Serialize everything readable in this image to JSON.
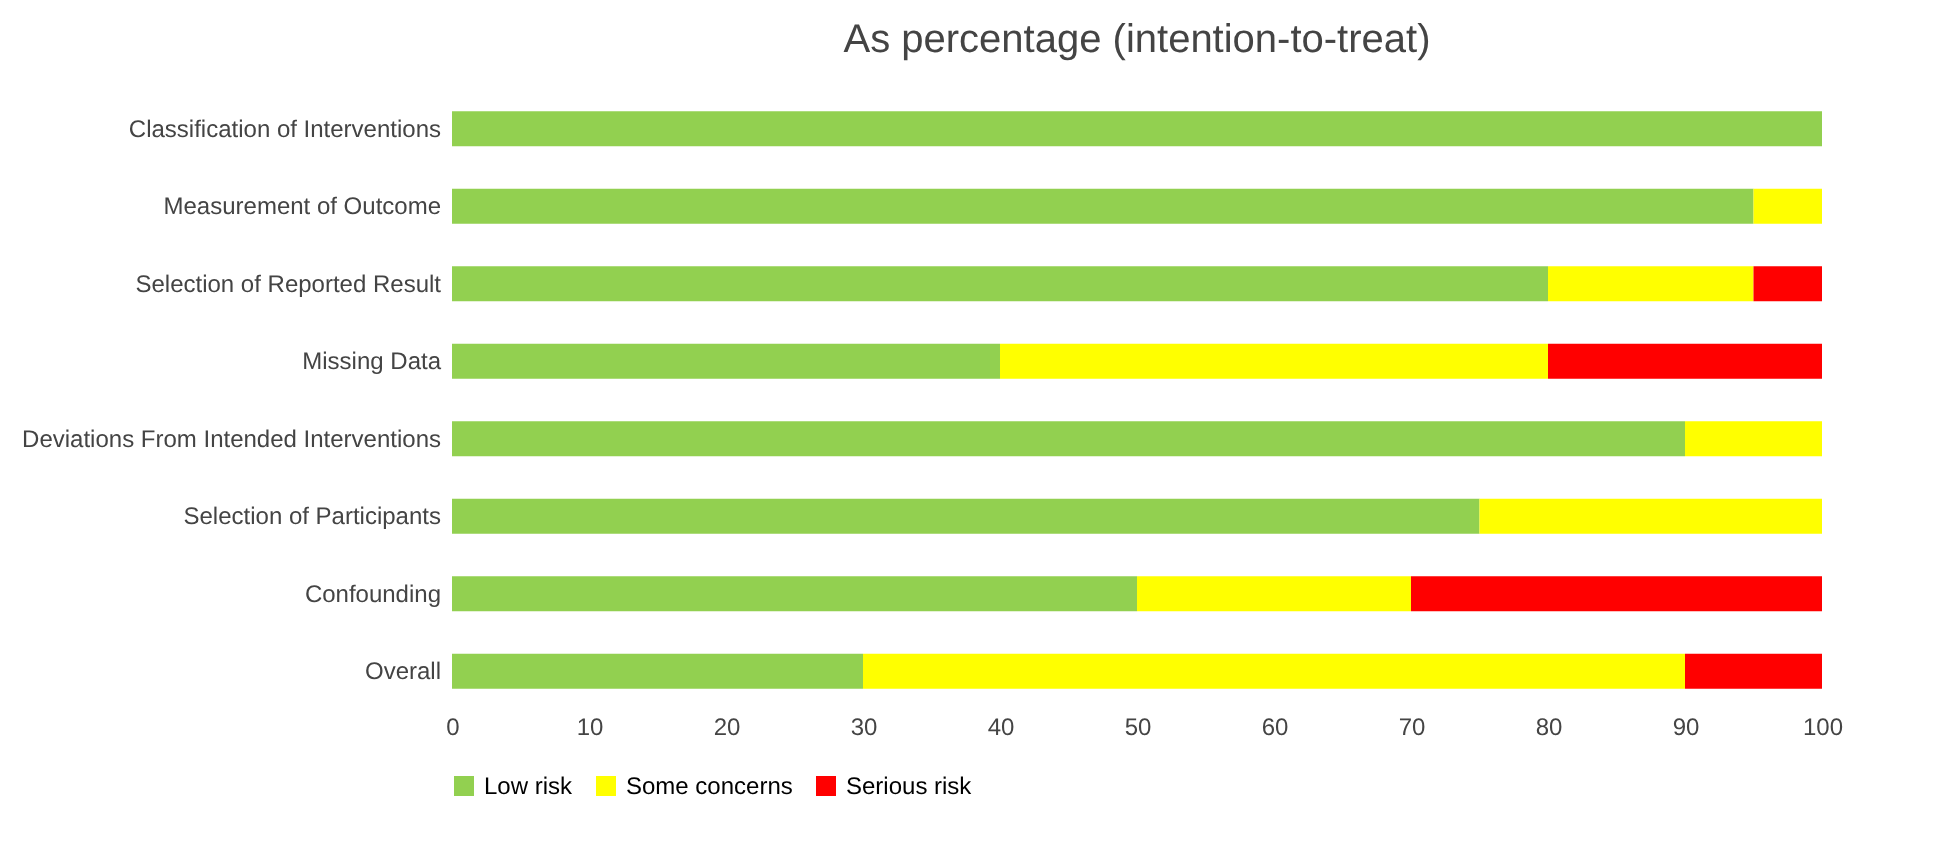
{
  "chart_data": {
    "type": "bar",
    "orientation": "horizontal",
    "stacked": true,
    "title": "As percentage (intention-to-treat)",
    "categories": [
      "Classification of Interventions",
      "Measurement of Outcome",
      "Selection of Reported Result",
      "Missing Data",
      "Deviations From Intended Interventions",
      "Selection of Participants",
      "Confounding",
      "Overall"
    ],
    "series": [
      {
        "name": "Low risk",
        "color": "#92d050",
        "values": [
          100,
          95,
          80,
          40,
          90,
          75,
          50,
          30
        ]
      },
      {
        "name": "Some concerns",
        "color": "#ffff00",
        "values": [
          0,
          5,
          15,
          40,
          10,
          25,
          20,
          60
        ]
      },
      {
        "name": "Serious risk",
        "color": "#ff0000",
        "values": [
          0,
          0,
          5,
          20,
          0,
          0,
          30,
          10
        ]
      }
    ],
    "xlim": [
      0,
      100
    ],
    "xticks": [
      0,
      10,
      20,
      30,
      40,
      50,
      60,
      70,
      80,
      90,
      100
    ],
    "grid": false,
    "legend": "bottom"
  }
}
